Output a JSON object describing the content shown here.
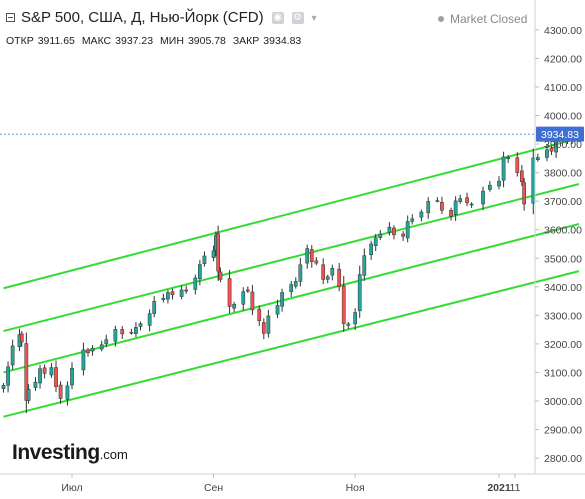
{
  "header": {
    "title": "S&P 500, США, Д, Нью-Йорк (CFD)",
    "market_status": "Market Closed",
    "settings_icon": "gear-icon",
    "screenshot_icon": "camera-icon"
  },
  "ohlc": {
    "open_label": "ОТКР",
    "open": "3911.65",
    "high_label": "МАКС",
    "high": "3937.23",
    "low_label": "МИН",
    "low": "3905.78",
    "close_label": "ЗАКР",
    "close": "3934.83"
  },
  "logo": {
    "brand": "Investing",
    "suffix": ".com"
  },
  "colors": {
    "up": "#26a69a",
    "down": "#ef5350",
    "channel": "#33dd33",
    "price_tag": "#3f6fd1"
  },
  "chart_data": {
    "type": "candlestick",
    "instrument": "S&P 500",
    "timeframe": "daily",
    "ylim": [
      2720,
      4370
    ],
    "y_ticks": [
      2800,
      2900,
      3000,
      3100,
      3200,
      3300,
      3400,
      3500,
      3600,
      3700,
      3800,
      3900,
      4000,
      4100,
      4200,
      4300
    ],
    "y_tick_labels": [
      "2800.00",
      "2900.00",
      "3000.00",
      "3100.00",
      "3200.00",
      "3300.00",
      "3400.00",
      "3500.00",
      "3600.00",
      "3700.00",
      "3800.00",
      "3900.00",
      "4000.00",
      "4100.00",
      "4200.00",
      "4300.00"
    ],
    "x_ticks": [
      {
        "label": "Июл",
        "date": "2020-07-01"
      },
      {
        "label": "Сен",
        "date": "2020-09-01"
      },
      {
        "label": "Ноя",
        "date": "2020-11-02"
      },
      {
        "label": "2021",
        "date": "2021-01-04"
      },
      {
        "label": "11",
        "date": "2021-01-11"
      }
    ],
    "last_price": 3934.83,
    "last_price_label": "3934.83",
    "closes": [
      [
        "2020-06-01",
        3055
      ],
      [
        "2020-06-03",
        3120
      ],
      [
        "2020-06-05",
        3193
      ],
      [
        "2020-06-08",
        3232
      ],
      [
        "2020-06-09",
        3207
      ],
      [
        "2020-06-11",
        3002
      ],
      [
        "2020-06-12",
        3041
      ],
      [
        "2020-06-15",
        3066
      ],
      [
        "2020-06-17",
        3113
      ],
      [
        "2020-06-19",
        3097
      ],
      [
        "2020-06-22",
        3117
      ],
      [
        "2020-06-24",
        3050
      ],
      [
        "2020-06-26",
        3009
      ],
      [
        "2020-06-29",
        3053
      ],
      [
        "2020-07-01",
        3115
      ],
      [
        "2020-07-06",
        3179
      ],
      [
        "2020-07-08",
        3169
      ],
      [
        "2020-07-10",
        3185
      ],
      [
        "2020-07-14",
        3197
      ],
      [
        "2020-07-16",
        3215
      ],
      [
        "2020-07-20",
        3251
      ],
      [
        "2020-07-23",
        3235
      ],
      [
        "2020-07-27",
        3239
      ],
      [
        "2020-07-29",
        3258
      ],
      [
        "2020-07-31",
        3271
      ],
      [
        "2020-08-04",
        3306
      ],
      [
        "2020-08-06",
        3349
      ],
      [
        "2020-08-10",
        3360
      ],
      [
        "2020-08-12",
        3380
      ],
      [
        "2020-08-14",
        3372
      ],
      [
        "2020-08-18",
        3389
      ],
      [
        "2020-08-20",
        3385
      ],
      [
        "2020-08-24",
        3431
      ],
      [
        "2020-08-26",
        3478
      ],
      [
        "2020-08-28",
        3508
      ],
      [
        "2020-09-01",
        3526
      ],
      [
        "2020-09-02",
        3580
      ],
      [
        "2020-09-03",
        3455
      ],
      [
        "2020-09-04",
        3426
      ],
      [
        "2020-09-08",
        3331
      ],
      [
        "2020-09-10",
        3339
      ],
      [
        "2020-09-14",
        3383
      ],
      [
        "2020-09-16",
        3385
      ],
      [
        "2020-09-18",
        3319
      ],
      [
        "2020-09-21",
        3281
      ],
      [
        "2020-09-23",
        3237
      ],
      [
        "2020-09-25",
        3298
      ],
      [
        "2020-09-29",
        3335
      ],
      [
        "2020-10-01",
        3380
      ],
      [
        "2020-10-05",
        3408
      ],
      [
        "2020-10-07",
        3419
      ],
      [
        "2020-10-09",
        3477
      ],
      [
        "2020-10-12",
        3534
      ],
      [
        "2020-10-14",
        3488
      ],
      [
        "2020-10-16",
        3483
      ],
      [
        "2020-10-19",
        3426
      ],
      [
        "2020-10-21",
        3435
      ],
      [
        "2020-10-23",
        3465
      ],
      [
        "2020-10-26",
        3400
      ],
      [
        "2020-10-28",
        3271
      ],
      [
        "2020-10-30",
        3270
      ],
      [
        "2020-11-02",
        3310
      ],
      [
        "2020-11-04",
        3443
      ],
      [
        "2020-11-06",
        3509
      ],
      [
        "2020-11-09",
        3550
      ],
      [
        "2020-11-11",
        3572
      ],
      [
        "2020-11-13",
        3585
      ],
      [
        "2020-11-17",
        3609
      ],
      [
        "2020-11-19",
        3582
      ],
      [
        "2020-11-23",
        3577
      ],
      [
        "2020-11-25",
        3629
      ],
      [
        "2020-11-27",
        3638
      ],
      [
        "2020-12-01",
        3662
      ],
      [
        "2020-12-04",
        3699
      ],
      [
        "2020-12-08",
        3702
      ],
      [
        "2020-12-10",
        3668
      ],
      [
        "2020-12-14",
        3647
      ],
      [
        "2020-12-16",
        3701
      ],
      [
        "2020-12-18",
        3709
      ],
      [
        "2020-12-21",
        3694
      ],
      [
        "2020-12-23",
        3690
      ],
      [
        "2020-12-28",
        3735
      ],
      [
        "2020-12-31",
        3756
      ],
      [
        "2021-01-04",
        3770
      ],
      [
        "2021-01-06",
        3855
      ],
      [
        "2021-01-08",
        3852
      ],
      [
        "2021-01-12",
        3800
      ],
      [
        "2021-01-14",
        3768
      ],
      [
        "2021-01-15",
        3690
      ],
      [
        "2021-01-19",
        3851
      ],
      [
        "2021-01-21",
        3853
      ],
      [
        "2021-01-25",
        3880
      ],
      [
        "2021-01-27",
        3875
      ],
      [
        "2021-01-29",
        3910
      ],
      [
        "2021-02-01",
        3916
      ],
      [
        "2021-02-03",
        3915
      ],
      [
        "2021-02-05",
        3934.83
      ]
    ],
    "channel_lines": [
      {
        "from": [
          "2020-06-01",
          3395
        ],
        "to": [
          "2021-02-08",
          3920
        ]
      },
      {
        "from": [
          "2020-06-01",
          3245
        ],
        "to": [
          "2021-02-08",
          3760
        ]
      },
      {
        "from": [
          "2020-06-01",
          3100
        ],
        "to": [
          "2021-02-08",
          3620
        ]
      },
      {
        "from": [
          "2020-06-01",
          2945
        ],
        "to": [
          "2021-02-08",
          3455
        ]
      }
    ],
    "grid": false
  }
}
